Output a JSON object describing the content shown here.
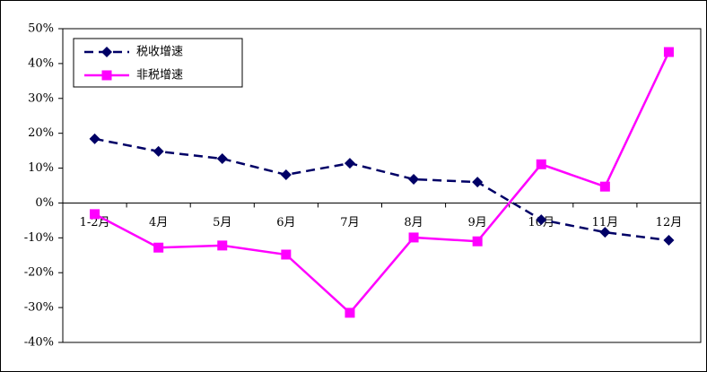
{
  "chart_data": {
    "type": "line",
    "categories": [
      "1-2月",
      "4月",
      "5月",
      "6月",
      "7月",
      "8月",
      "9月",
      "10月",
      "11月",
      "12月"
    ],
    "series": [
      {
        "name": "税收增速",
        "color": "#000066",
        "dashed": true,
        "marker": "diamond",
        "values": [
          18.4,
          14.8,
          12.7,
          8.1,
          11.4,
          6.8,
          6.0,
          -4.8,
          -8.4,
          -10.7
        ]
      },
      {
        "name": "非税增速",
        "color": "#ff00ff",
        "dashed": false,
        "marker": "square",
        "values": [
          -3.2,
          -12.8,
          -12.2,
          -14.8,
          -31.5,
          -9.9,
          -11.0,
          11.1,
          4.7,
          43.3
        ]
      }
    ],
    "ylim": [
      -40,
      50
    ],
    "yticks": [
      {
        "value": -40,
        "label": "-40%"
      },
      {
        "value": -30,
        "label": "-30%"
      },
      {
        "value": -20,
        "label": "-20%"
      },
      {
        "value": -10,
        "label": "-10%"
      },
      {
        "value": 0,
        "label": "0%"
      },
      {
        "value": 10,
        "label": "10%"
      },
      {
        "value": 20,
        "label": "20%"
      },
      {
        "value": 30,
        "label": "30%"
      },
      {
        "value": 40,
        "label": "40%"
      },
      {
        "value": 50,
        "label": "50%"
      }
    ],
    "grid": false,
    "legend": "upper left"
  }
}
